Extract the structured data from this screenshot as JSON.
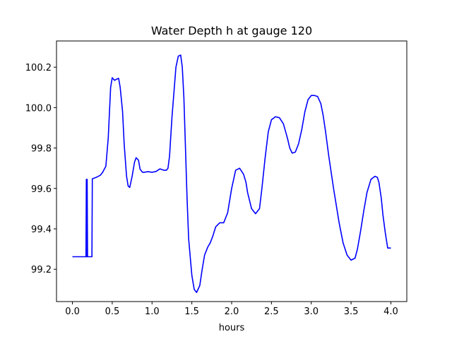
{
  "chart_data": {
    "type": "line",
    "title": "Water Depth h at gauge 120",
    "xlabel": "hours",
    "ylabel": "",
    "xlim": [
      -0.2,
      4.2
    ],
    "ylim": [
      99.04,
      100.33
    ],
    "grid": false,
    "legend": "none",
    "xticks": [
      "0.0",
      "0.5",
      "1.0",
      "1.5",
      "2.0",
      "2.5",
      "3.0",
      "3.5",
      "4.0"
    ],
    "yticks": [
      "99.2",
      "99.4",
      "99.6",
      "99.8",
      "100.0",
      "100.2"
    ],
    "series": [
      {
        "color": "#0000ff",
        "x": [
          0.0,
          0.17,
          0.175,
          0.18,
          0.185,
          0.19,
          0.245,
          0.25,
          0.3,
          0.35,
          0.38,
          0.42,
          0.45,
          0.48,
          0.5,
          0.53,
          0.55,
          0.58,
          0.6,
          0.63,
          0.65,
          0.68,
          0.7,
          0.72,
          0.75,
          0.78,
          0.8,
          0.83,
          0.85,
          0.88,
          0.9,
          0.95,
          1.0,
          1.05,
          1.1,
          1.15,
          1.18,
          1.2,
          1.22,
          1.25,
          1.28,
          1.3,
          1.33,
          1.36,
          1.38,
          1.4,
          1.42,
          1.44,
          1.46,
          1.5,
          1.53,
          1.56,
          1.6,
          1.63,
          1.66,
          1.7,
          1.73,
          1.76,
          1.8,
          1.85,
          1.9,
          1.95,
          2.0,
          2.05,
          2.1,
          2.15,
          2.18,
          2.2,
          2.25,
          2.3,
          2.35,
          2.38,
          2.42,
          2.46,
          2.5,
          2.55,
          2.6,
          2.65,
          2.7,
          2.73,
          2.76,
          2.8,
          2.84,
          2.88,
          2.92,
          2.96,
          3.0,
          3.04,
          3.08,
          3.12,
          3.15,
          3.18,
          3.22,
          3.28,
          3.35,
          3.4,
          3.45,
          3.5,
          3.55,
          3.58,
          3.62,
          3.66,
          3.7,
          3.75,
          3.8,
          3.83,
          3.85,
          3.88,
          3.9,
          3.93,
          3.96,
          4.0
        ],
        "values": [
          99.262,
          99.262,
          99.645,
          99.262,
          99.645,
          99.262,
          99.262,
          99.648,
          99.655,
          99.665,
          99.68,
          99.71,
          99.85,
          100.1,
          100.148,
          100.135,
          100.14,
          100.145,
          100.1,
          99.98,
          99.82,
          99.66,
          99.612,
          99.605,
          99.66,
          99.73,
          99.752,
          99.74,
          99.695,
          99.68,
          99.68,
          99.683,
          99.68,
          99.684,
          99.697,
          99.69,
          99.69,
          99.7,
          99.76,
          99.95,
          100.1,
          100.2,
          100.255,
          100.26,
          100.2,
          100.05,
          99.8,
          99.55,
          99.35,
          99.17,
          99.1,
          99.085,
          99.12,
          99.2,
          99.27,
          99.31,
          99.33,
          99.36,
          99.41,
          99.43,
          99.43,
          99.48,
          99.6,
          99.69,
          99.7,
          99.67,
          99.63,
          99.58,
          99.5,
          99.475,
          99.5,
          99.6,
          99.75,
          99.88,
          99.94,
          99.955,
          99.95,
          99.92,
          99.85,
          99.8,
          99.775,
          99.78,
          99.82,
          99.89,
          99.98,
          100.04,
          100.06,
          100.06,
          100.055,
          100.02,
          99.96,
          99.88,
          99.76,
          99.6,
          99.43,
          99.33,
          99.27,
          99.245,
          99.255,
          99.3,
          99.39,
          99.49,
          99.58,
          99.645,
          99.66,
          99.655,
          99.63,
          99.55,
          99.47,
          99.38,
          99.305,
          99.305
        ]
      }
    ]
  }
}
